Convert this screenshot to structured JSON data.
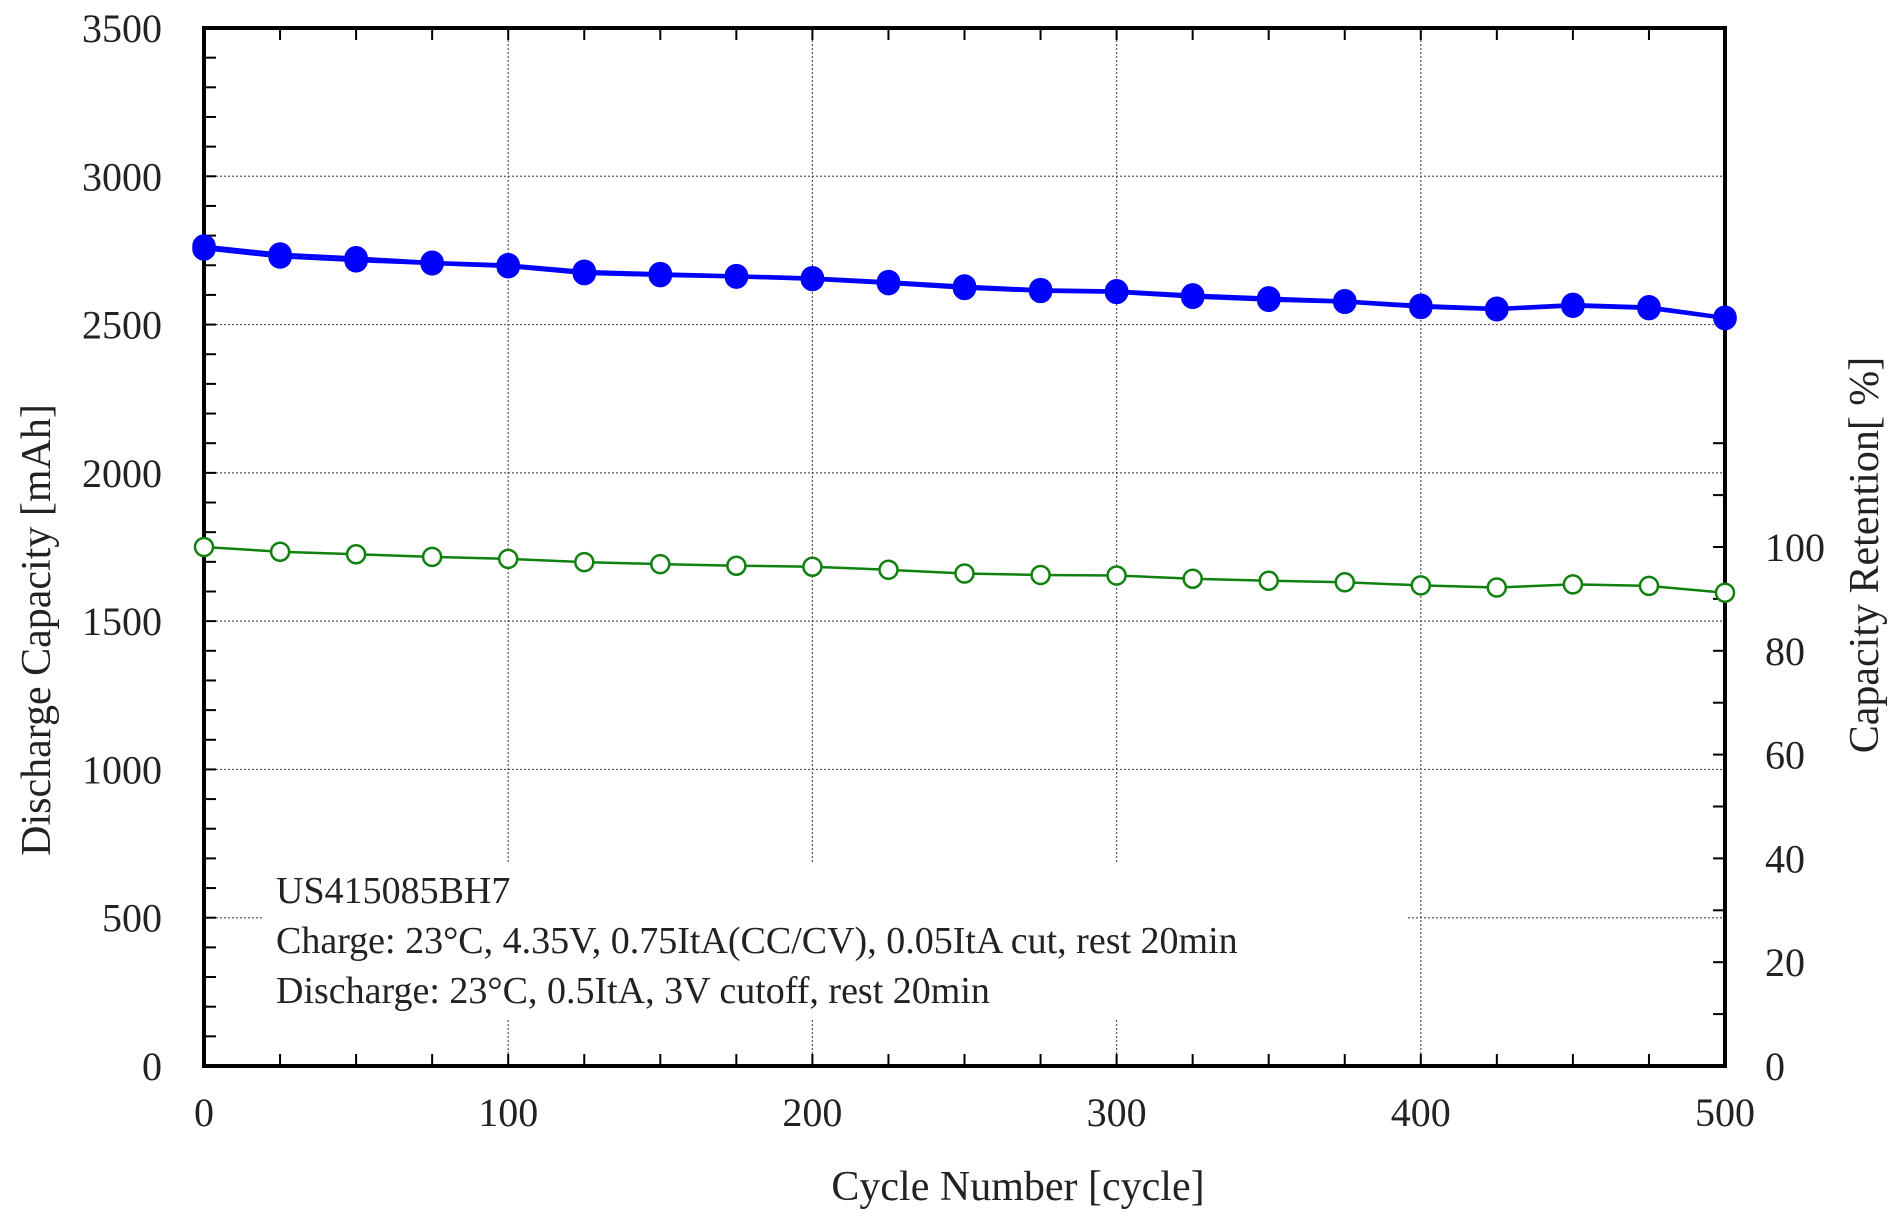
{
  "chart_data": {
    "type": "line",
    "xlabel": "Cycle Number [cycle]",
    "ylabel": "Discharge Capacity [mAh]",
    "y2label": "Capacity Retention[ %]",
    "xlim": [
      0,
      500
    ],
    "ylim": [
      0,
      3500
    ],
    "y2lim": [
      0,
      200
    ],
    "x_ticks": [
      0,
      100,
      200,
      300,
      400,
      500
    ],
    "y_ticks": [
      0,
      500,
      1000,
      1500,
      2000,
      2500,
      3000,
      3500
    ],
    "y2_ticks": [
      0,
      20,
      40,
      60,
      80,
      100
    ],
    "grid": true,
    "x": [
      0,
      25,
      50,
      75,
      100,
      125,
      150,
      175,
      200,
      225,
      250,
      275,
      300,
      325,
      350,
      375,
      400,
      425,
      450,
      475,
      500
    ],
    "series": [
      {
        "axis": "left",
        "color": "#0000ff",
        "marker": "filled-circle",
        "values": [
          2765,
          2738,
          2725,
          2710,
          2702,
          2680,
          2672,
          2665,
          2658,
          2645,
          2630,
          2618,
          2614,
          2600,
          2590,
          2580,
          2565,
          2555,
          2568,
          2560,
          2525
        ]
      },
      {
        "axis": "left",
        "color": "#0000ff",
        "marker": "filled-circle",
        "values": [
          2755,
          2728,
          2715,
          2705,
          2695,
          2672,
          2665,
          2660,
          2652,
          2638,
          2622,
          2612,
          2608,
          2592,
          2582,
          2575,
          2558,
          2550,
          2562,
          2554,
          2520
        ]
      },
      {
        "axis": "right",
        "color": "#108010",
        "marker": "open-circle",
        "values": [
          100,
          99.1,
          98.6,
          98.1,
          97.7,
          97.1,
          96.7,
          96.4,
          96.2,
          95.6,
          94.9,
          94.6,
          94.5,
          93.9,
          93.5,
          93.2,
          92.6,
          92.2,
          92.8,
          92.5,
          91.2
        ]
      }
    ],
    "annotation": [
      "US415085BH7",
      "Charge: 23°C, 4.35V, 0.75ItA(CC/CV),  0.05ItA cut, rest 20min",
      "Discharge:  23°C, 0.5ItA, 3V cutoff, rest 20min"
    ]
  }
}
